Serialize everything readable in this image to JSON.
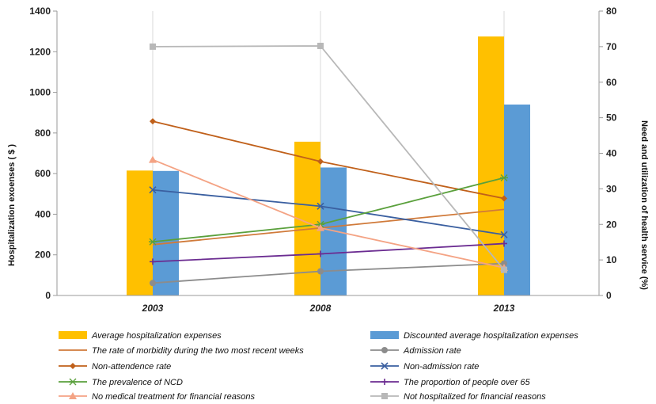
{
  "chart_data": {
    "type": "bar+line",
    "categories": [
      "2003",
      "2008",
      "2013"
    ],
    "y_left": {
      "label": "Hospitalization exoenses  ( $ )",
      "range": [
        0,
        1400
      ],
      "ticks": [
        0,
        200,
        400,
        600,
        800,
        1000,
        1200,
        1400
      ]
    },
    "y_right": {
      "label": "Need and utilization of health service  (%)",
      "range": [
        0,
        80
      ],
      "ticks": [
        0,
        10,
        20,
        30,
        40,
        50,
        60,
        70,
        80
      ]
    },
    "bars": [
      {
        "name": "Average hospitalization expenses",
        "color": "#FFC000",
        "values": [
          615,
          757,
          1275
        ]
      },
      {
        "name": "Discounted average hospitalization expenses",
        "color": "#5B9BD5",
        "values": [
          613,
          630,
          940
        ]
      }
    ],
    "lines": [
      {
        "name": "The rate of morbidity during the two most recent weeks",
        "color": "#D07A3A",
        "marker": "none",
        "values": [
          14.3,
          19.0,
          24.2
        ]
      },
      {
        "name": "Admission rate",
        "color": "#8C8C8C",
        "marker": "circle",
        "values": [
          3.5,
          6.8,
          9.0
        ]
      },
      {
        "name": "Non-attendence rate",
        "color": "#C0601A",
        "marker": "diamond",
        "values": [
          49.0,
          37.7,
          27.3
        ]
      },
      {
        "name": "Non-admission rate",
        "color": "#3A5FA0",
        "marker": "x",
        "values": [
          29.7,
          25.1,
          17.1
        ]
      },
      {
        "name": "The prevalence of NCD",
        "color": "#5AA03C",
        "marker": "star",
        "values": [
          15.1,
          20.0,
          33.1
        ]
      },
      {
        "name": "The proportion of people over 65",
        "color": "#6B2C91",
        "marker": "plus",
        "values": [
          9.5,
          11.7,
          14.6
        ]
      },
      {
        "name": "No medical treatment for financial reasons",
        "color": "#F4A384",
        "marker": "triangle",
        "values": [
          38.2,
          19.0,
          7.8
        ]
      },
      {
        "name": "Not hospitalized for financial reasons",
        "color": "#B8B8B8",
        "marker": "square",
        "values": [
          70.0,
          70.2,
          7.2
        ]
      }
    ]
  }
}
